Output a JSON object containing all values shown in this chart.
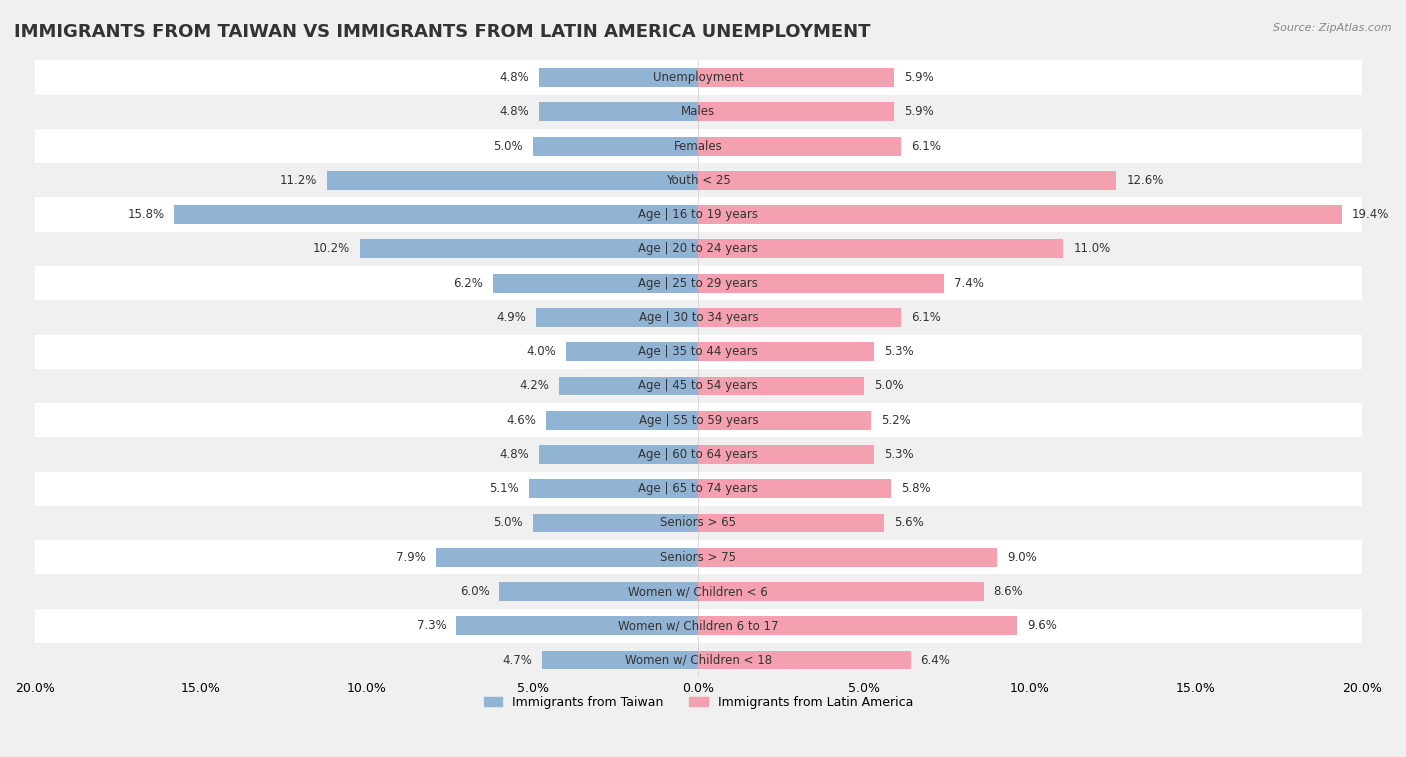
{
  "title": "IMMIGRANTS FROM TAIWAN VS IMMIGRANTS FROM LATIN AMERICA UNEMPLOYMENT",
  "source": "Source: ZipAtlas.com",
  "categories": [
    "Unemployment",
    "Males",
    "Females",
    "Youth < 25",
    "Age | 16 to 19 years",
    "Age | 20 to 24 years",
    "Age | 25 to 29 years",
    "Age | 30 to 34 years",
    "Age | 35 to 44 years",
    "Age | 45 to 54 years",
    "Age | 55 to 59 years",
    "Age | 60 to 64 years",
    "Age | 65 to 74 years",
    "Seniors > 65",
    "Seniors > 75",
    "Women w/ Children < 6",
    "Women w/ Children 6 to 17",
    "Women w/ Children < 18"
  ],
  "taiwan_values": [
    4.8,
    4.8,
    5.0,
    11.2,
    15.8,
    10.2,
    6.2,
    4.9,
    4.0,
    4.2,
    4.6,
    4.8,
    5.1,
    5.0,
    7.9,
    6.0,
    7.3,
    4.7
  ],
  "latin_values": [
    5.9,
    5.9,
    6.1,
    12.6,
    19.4,
    11.0,
    7.4,
    6.1,
    5.3,
    5.0,
    5.2,
    5.3,
    5.8,
    5.6,
    9.0,
    8.6,
    9.6,
    6.4
  ],
  "taiwan_color": "#92b4d4",
  "latin_color": "#f4a0b0",
  "taiwan_label": "Immigrants from Taiwan",
  "latin_label": "Immigrants from Latin America",
  "xlim": 20.0,
  "background_color": "#f0f0f0",
  "bar_background_color": "#ffffff",
  "title_fontsize": 13,
  "label_fontsize": 9
}
